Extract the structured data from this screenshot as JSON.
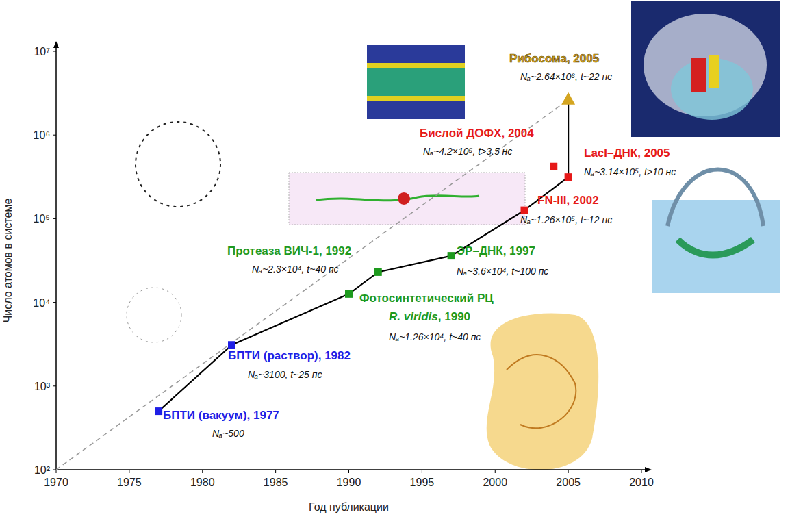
{
  "chart_data": {
    "type": "scatter",
    "xlabel": "Год публикации",
    "ylabel": "Число атомов в системе",
    "log": "y",
    "grid": false,
    "xlim": [
      1970,
      2010
    ],
    "xticks": [
      1970,
      1975,
      1980,
      1985,
      1990,
      1995,
      2000,
      2005,
      2010
    ],
    "ylim": [
      100,
      10000000
    ],
    "yticks": [
      {
        "value": 100,
        "label": "10²"
      },
      {
        "value": 1000,
        "label": "10³"
      },
      {
        "value": 10000,
        "label": "10⁴"
      },
      {
        "value": 100000,
        "label": "10⁵"
      },
      {
        "value": 1000000,
        "label": "10⁶"
      },
      {
        "value": 10000000,
        "label": "10⁷"
      }
    ],
    "series": [
      {
        "type": "line",
        "color": "#000000",
        "line_style": "solid",
        "x": [
          1977,
          1982,
          1990,
          1992,
          1997,
          2002,
          2005,
          2005
        ],
        "values": [
          500,
          3100,
          12600,
          23000,
          36000,
          126000,
          314000,
          2640000
        ]
      },
      {
        "type": "line",
        "color": "#999999",
        "line_style": "dashed",
        "x": [
          1970,
          2005
        ],
        "values": [
          100,
          2640000
        ]
      },
      {
        "type": "scatter",
        "marker": "square",
        "x": [
          1977,
          1982,
          1990,
          1992,
          1997,
          2002,
          2004,
          2005
        ],
        "values": [
          500,
          3100,
          12600,
          23000,
          36000,
          126000,
          420000,
          314000
        ],
        "colors": [
          "#1f1fe6",
          "#1f1fe6",
          "#1e9a1e",
          "#1e9a1e",
          "#1e9a1e",
          "#e61919",
          "#e61919",
          "#e61919"
        ],
        "labels": [
          [
            "БПТИ (вакуум), 1977"
          ],
          [
            "БПТИ (раствор), 1982"
          ],
          [
            "Фотосинтетический РЦ",
            "R. viridis, 1990"
          ],
          [
            "Протеаза ВИЧ-1, 1992"
          ],
          [
            "ЭР–ДНК, 1997"
          ],
          [
            "FN-III, 2002"
          ],
          [
            "Бислой ДОФХ, 2004"
          ],
          [
            "LacI–ДНК, 2005"
          ]
        ],
        "notes": [
          "Nₐ~500",
          "Nₐ~3100, t~25 пс",
          "Nₐ~1.26×10⁴, t~40 пс",
          "Nₐ~2.3×10⁴, t~40 пс",
          "Nₐ~3.6×10⁴, t~100 пс",
          "Nₐ~1.26×10⁵, t~12 нс",
          "Nₐ~4.2×10⁵, t>3.5 нс",
          "Nₐ~3.14×10⁵, t>10 нс"
        ]
      },
      {
        "type": "scatter",
        "marker": "triangle",
        "x": [
          2005
        ],
        "values": [
          2640000
        ],
        "colors": [
          "#d4a520"
        ],
        "labels": [
          [
            "Рибосома, 2005"
          ]
        ],
        "notes": [
          "Nₐ~2.64×10⁶, t~22 нс"
        ]
      }
    ]
  }
}
